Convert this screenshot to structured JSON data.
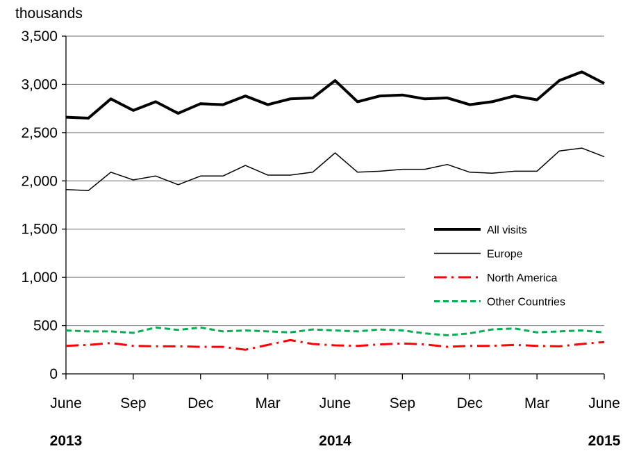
{
  "chart_data": {
    "type": "line",
    "ylabel": "thousands",
    "ylim": [
      0,
      3500
    ],
    "yticks": [
      "0",
      "500",
      "1,000",
      "1,500",
      "2,000",
      "2,500",
      "3,000",
      "3,500"
    ],
    "ytick_values": [
      0,
      500,
      1000,
      1500,
      2000,
      2500,
      3000,
      3500
    ],
    "x": [
      "2013-06",
      "2013-07",
      "2013-08",
      "2013-09",
      "2013-10",
      "2013-11",
      "2013-12",
      "2014-01",
      "2014-02",
      "2014-03",
      "2014-04",
      "2014-05",
      "2014-06",
      "2014-07",
      "2014-08",
      "2014-09",
      "2014-10",
      "2014-11",
      "2014-12",
      "2015-01",
      "2015-02",
      "2015-03",
      "2015-04",
      "2015-05",
      "2015-06"
    ],
    "xtick_labels": [
      {
        "label": "June",
        "x": "2013-06"
      },
      {
        "label": "Sep",
        "x": "2013-09"
      },
      {
        "label": "Dec",
        "x": "2013-12"
      },
      {
        "label": "Mar",
        "x": "2014-03"
      },
      {
        "label": "June",
        "x": "2014-06"
      },
      {
        "label": "Sep",
        "x": "2014-09"
      },
      {
        "label": "Dec",
        "x": "2014-12"
      },
      {
        "label": "Mar",
        "x": "2015-03"
      },
      {
        "label": "June",
        "x": "2015-06"
      }
    ],
    "year_labels": [
      {
        "label": "2013",
        "x": "2013-06"
      },
      {
        "label": "2014",
        "x": "2014-06"
      },
      {
        "label": "2015",
        "x": "2015-06"
      }
    ],
    "grid": true,
    "legend_position": "center-right",
    "series": [
      {
        "name": "All visits",
        "color": "#000000",
        "style": "solid-thick",
        "values": [
          2660,
          2650,
          2850,
          2730,
          2820,
          2700,
          2800,
          2790,
          2880,
          2790,
          2850,
          2860,
          3040,
          2820,
          2880,
          2890,
          2850,
          2860,
          2790,
          2820,
          2880,
          2840,
          3040,
          3130,
          3010
        ]
      },
      {
        "name": "Europe",
        "color": "#000000",
        "style": "solid-thin",
        "values": [
          1910,
          1900,
          2090,
          2010,
          2050,
          1960,
          2050,
          2050,
          2160,
          2060,
          2060,
          2090,
          2290,
          2090,
          2100,
          2120,
          2120,
          2170,
          2090,
          2080,
          2100,
          2100,
          2310,
          2340,
          2250
        ]
      },
      {
        "name": "North America",
        "color": "#ff0000",
        "style": "dash-dot",
        "values": [
          290,
          300,
          320,
          290,
          285,
          285,
          280,
          280,
          250,
          300,
          350,
          310,
          295,
          290,
          305,
          315,
          305,
          280,
          290,
          290,
          300,
          290,
          285,
          310,
          330
        ]
      },
      {
        "name": "Other Countries",
        "color": "#00b050",
        "style": "dashed",
        "values": [
          450,
          440,
          440,
          425,
          480,
          455,
          480,
          440,
          450,
          440,
          430,
          460,
          450,
          440,
          460,
          450,
          420,
          400,
          420,
          460,
          470,
          430,
          440,
          450,
          430
        ]
      }
    ]
  }
}
